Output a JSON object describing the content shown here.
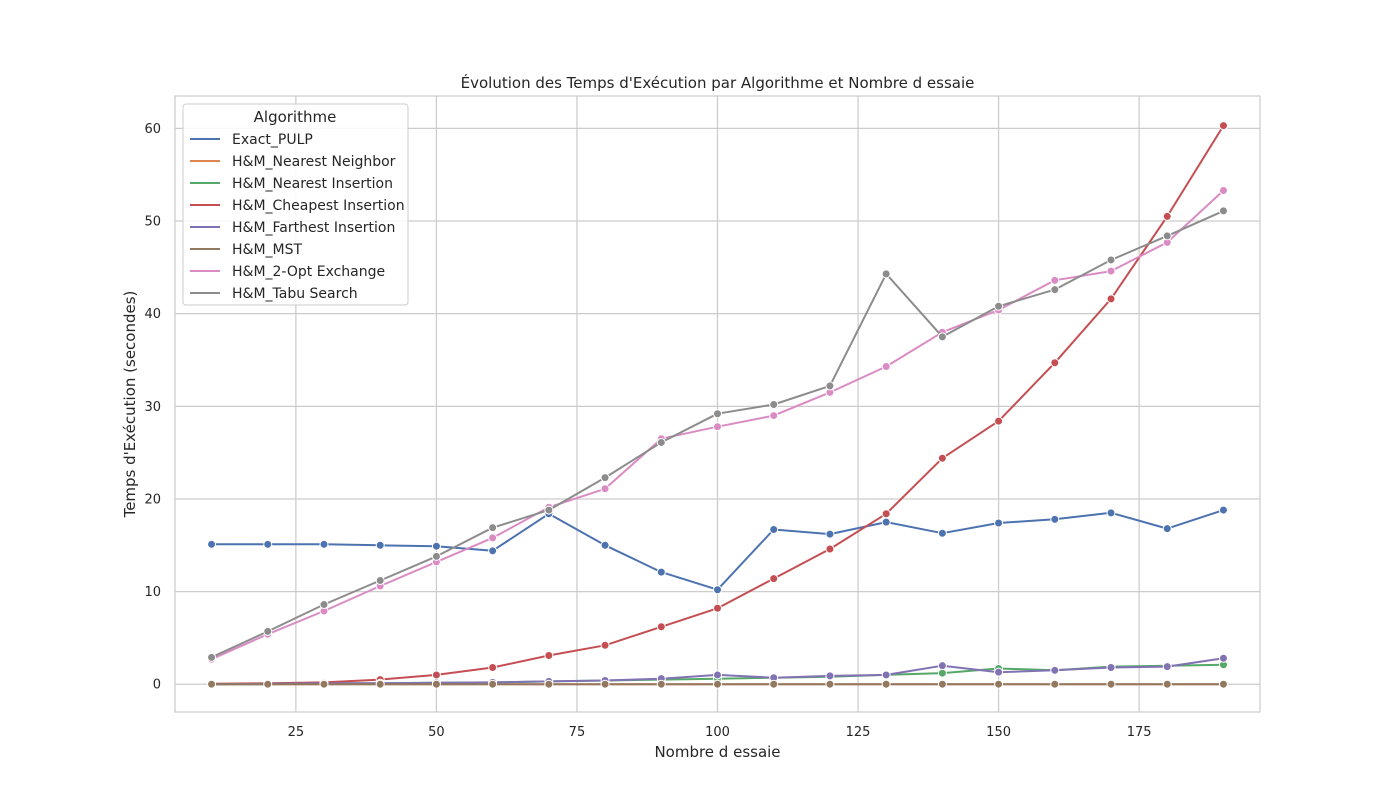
{
  "chart_data": {
    "type": "line",
    "title": "Évolution des Temps d'Exécution par Algorithme et Nombre d essaie",
    "xlabel": "Nombre d essaie",
    "ylabel": "Temps d'Exécution (secondes)",
    "xlim": [
      3.5,
      196.5
    ],
    "ylim": [
      -3,
      63.5
    ],
    "xticks": [
      25,
      50,
      75,
      100,
      125,
      150,
      175
    ],
    "yticks": [
      0,
      10,
      20,
      30,
      40,
      50,
      60
    ],
    "grid": true,
    "legend": {
      "title": "Algorithme",
      "position": "top-left"
    },
    "x": [
      10,
      20,
      30,
      40,
      50,
      60,
      70,
      80,
      90,
      100,
      110,
      120,
      130,
      140,
      150,
      160,
      170,
      180,
      190
    ],
    "series": [
      {
        "name": "Exact_PULP",
        "color": "#4c72b0",
        "values": [
          15.1,
          15.1,
          15.1,
          15.0,
          14.9,
          14.4,
          18.4,
          15.0,
          12.1,
          10.2,
          16.7,
          16.2,
          17.5,
          16.3,
          17.4,
          17.8,
          18.5,
          16.8,
          18.8
        ]
      },
      {
        "name": "H&M_Nearest Neighbor",
        "color": "#dd8452",
        "values": [
          0.0,
          0.0,
          0.0,
          0.0,
          0.0,
          0.0,
          0.0,
          0.0,
          0.0,
          0.0,
          0.0,
          0.0,
          0.0,
          0.0,
          0.0,
          0.0,
          0.0,
          0.0,
          0.0
        ]
      },
      {
        "name": "H&M_Nearest Insertion",
        "color": "#55a868",
        "values": [
          0.0,
          0.0,
          0.1,
          0.1,
          0.15,
          0.2,
          0.3,
          0.4,
          0.5,
          0.6,
          0.7,
          0.8,
          1.0,
          1.2,
          1.7,
          1.5,
          1.9,
          2.0,
          2.1
        ]
      },
      {
        "name": "H&M_Cheapest Insertion",
        "color": "#c44e52",
        "values": [
          0.05,
          0.1,
          0.2,
          0.5,
          1.0,
          1.8,
          3.1,
          4.2,
          6.2,
          8.2,
          11.4,
          14.6,
          18.4,
          24.4,
          28.4,
          34.7,
          41.6,
          50.5,
          60.3
        ]
      },
      {
        "name": "H&M_Farthest Insertion",
        "color": "#8172b3",
        "values": [
          0.0,
          0.05,
          0.1,
          0.1,
          0.15,
          0.2,
          0.3,
          0.4,
          0.6,
          1.0,
          0.7,
          0.9,
          1.0,
          2.0,
          1.3,
          1.5,
          1.8,
          1.9,
          2.8
        ]
      },
      {
        "name": "H&M_MST",
        "color": "#937860",
        "values": [
          0.0,
          0.0,
          0.0,
          0.0,
          0.0,
          0.0,
          0.0,
          0.0,
          0.0,
          0.0,
          0.0,
          0.0,
          0.0,
          0.0,
          0.0,
          0.0,
          0.0,
          0.0,
          0.0
        ]
      },
      {
        "name": "H&M_2-Opt Exchange",
        "color": "#da8bc3",
        "values": [
          2.7,
          5.4,
          7.9,
          10.6,
          13.2,
          15.8,
          19.1,
          21.1,
          26.5,
          27.8,
          29.0,
          31.5,
          34.3,
          38.0,
          40.4,
          43.6,
          44.6,
          47.7,
          53.3
        ]
      },
      {
        "name": "H&M_Tabu Search",
        "color": "#8c8c8c",
        "values": [
          2.9,
          5.7,
          8.6,
          11.2,
          13.8,
          16.9,
          18.8,
          22.3,
          26.1,
          29.2,
          30.2,
          32.2,
          44.3,
          37.5,
          40.8,
          42.6,
          45.8,
          48.4,
          51.1
        ]
      }
    ]
  }
}
